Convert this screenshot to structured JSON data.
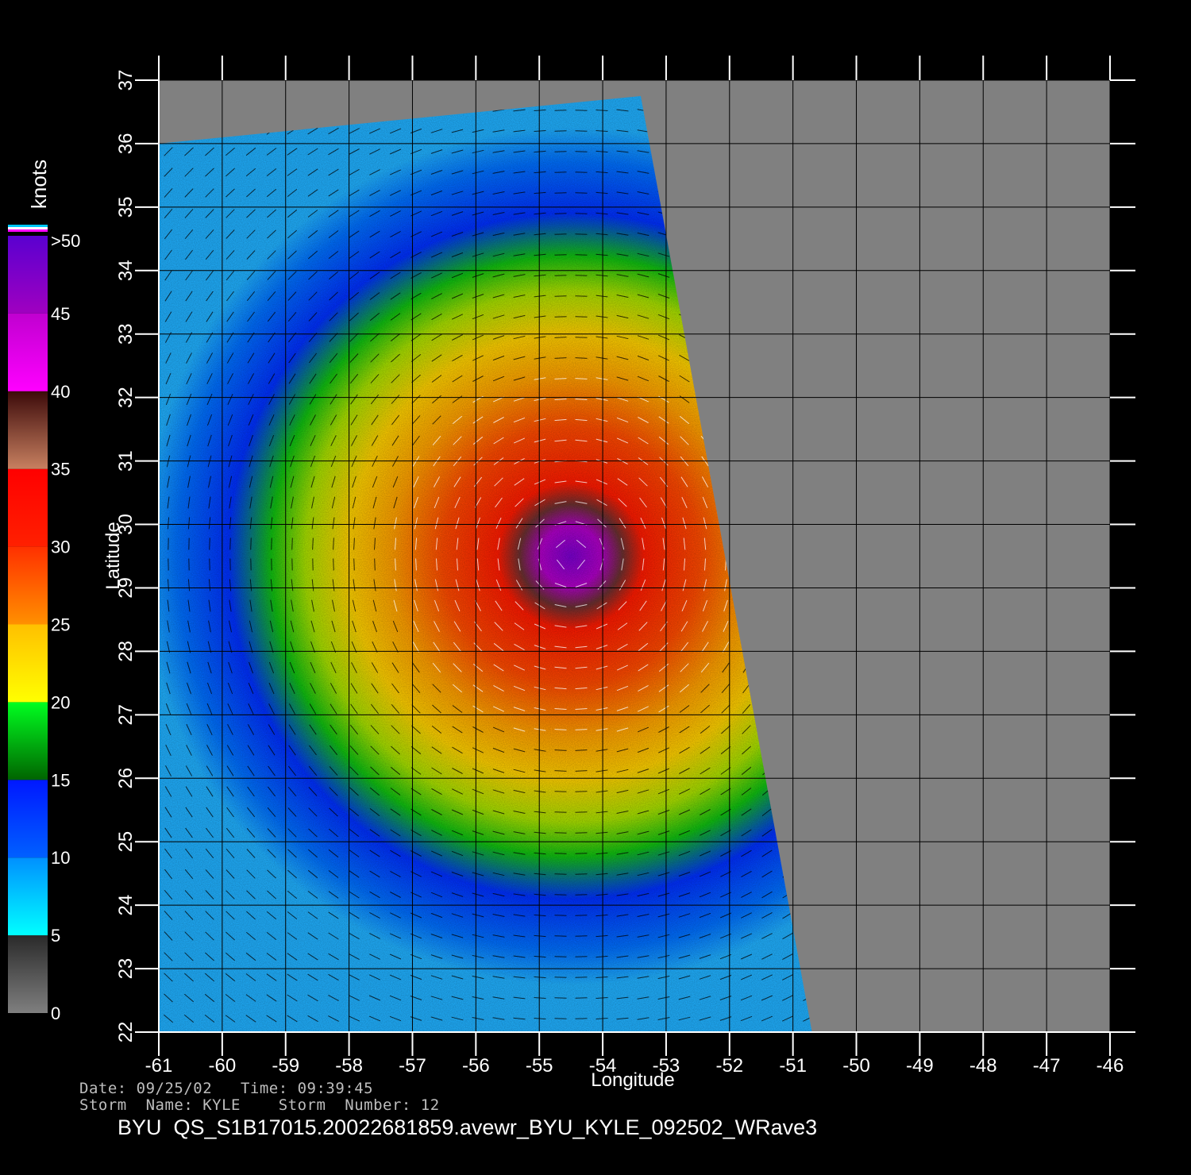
{
  "map": {
    "lon_range": [
      -61,
      -46
    ],
    "lat_range": [
      22,
      37
    ],
    "lon_ticks": [
      "-61",
      "-60",
      "-59",
      "-58",
      "-57",
      "-56",
      "-55",
      "-54",
      "-53",
      "-52",
      "-51",
      "-50",
      "-49",
      "-48",
      "-47",
      "-46"
    ],
    "lat_ticks": [
      "22",
      "23",
      "24",
      "25",
      "26",
      "27",
      "28",
      "29",
      "30",
      "31",
      "32",
      "33",
      "34",
      "35",
      "36",
      "37"
    ],
    "x_axis_label": "Longitude",
    "y_axis_label": "Latitude",
    "grid": true,
    "no_data_color": "#808080",
    "storm_center": {
      "lon": -54.5,
      "lat": 29.5
    },
    "swath_corners": [
      {
        "lon": -61.0,
        "lat": 36.0
      },
      {
        "lon": -53.4,
        "lat": 36.75
      },
      {
        "lon": -50.7,
        "lat": 22.0
      },
      {
        "lon": -61.0,
        "lat": 22.0
      }
    ]
  },
  "colorbar": {
    "unit_label": "knots",
    "tick_labels": [
      {
        "value": 0,
        "label": "0"
      },
      {
        "value": 5,
        "label": "5"
      },
      {
        "value": 10,
        "label": "10"
      },
      {
        "value": 15,
        "label": "15"
      },
      {
        "value": 20,
        "label": "20"
      },
      {
        "value": 25,
        "label": "25"
      },
      {
        "value": 30,
        "label": "30"
      },
      {
        "value": 35,
        "label": "35"
      },
      {
        "value": 40,
        "label": "40"
      },
      {
        "value": 45,
        "label": "45"
      },
      {
        "value": 50,
        "label": ">50"
      }
    ],
    "segments": [
      {
        "from": 0,
        "to": 5,
        "colors": [
          "#7f7f7f",
          "#2a2a2a"
        ]
      },
      {
        "from": 5,
        "to": 10,
        "colors": [
          "#00ffff",
          "#0090ff"
        ]
      },
      {
        "from": 10,
        "to": 15,
        "colors": [
          "#0060ff",
          "#0018ff"
        ]
      },
      {
        "from": 15,
        "to": 20,
        "colors": [
          "#006400",
          "#00ff20"
        ]
      },
      {
        "from": 20,
        "to": 25,
        "colors": [
          "#ffff00",
          "#ffc000"
        ]
      },
      {
        "from": 25,
        "to": 30,
        "colors": [
          "#ff9000",
          "#ff3000"
        ]
      },
      {
        "from": 30,
        "to": 35,
        "colors": [
          "#ff2000",
          "#ff0000"
        ]
      },
      {
        "from": 35,
        "to": 40,
        "colors": [
          "#c88060",
          "#3c0a0a"
        ]
      },
      {
        "from": 40,
        "to": 45,
        "colors": [
          "#ff00ff",
          "#c000d0"
        ]
      },
      {
        "from": 45,
        "to": 50,
        "colors": [
          "#a000c0",
          "#5a00d0"
        ]
      }
    ]
  },
  "info": {
    "date_time": "Date: 09/25/02   Time: 09:39:45",
    "storm": "Storm  Name: KYLE    Storm  Number: 12",
    "file": "BYU  QS_S1B17015.20022681859.avewr_BYU_KYLE_092502_WRave3"
  }
}
